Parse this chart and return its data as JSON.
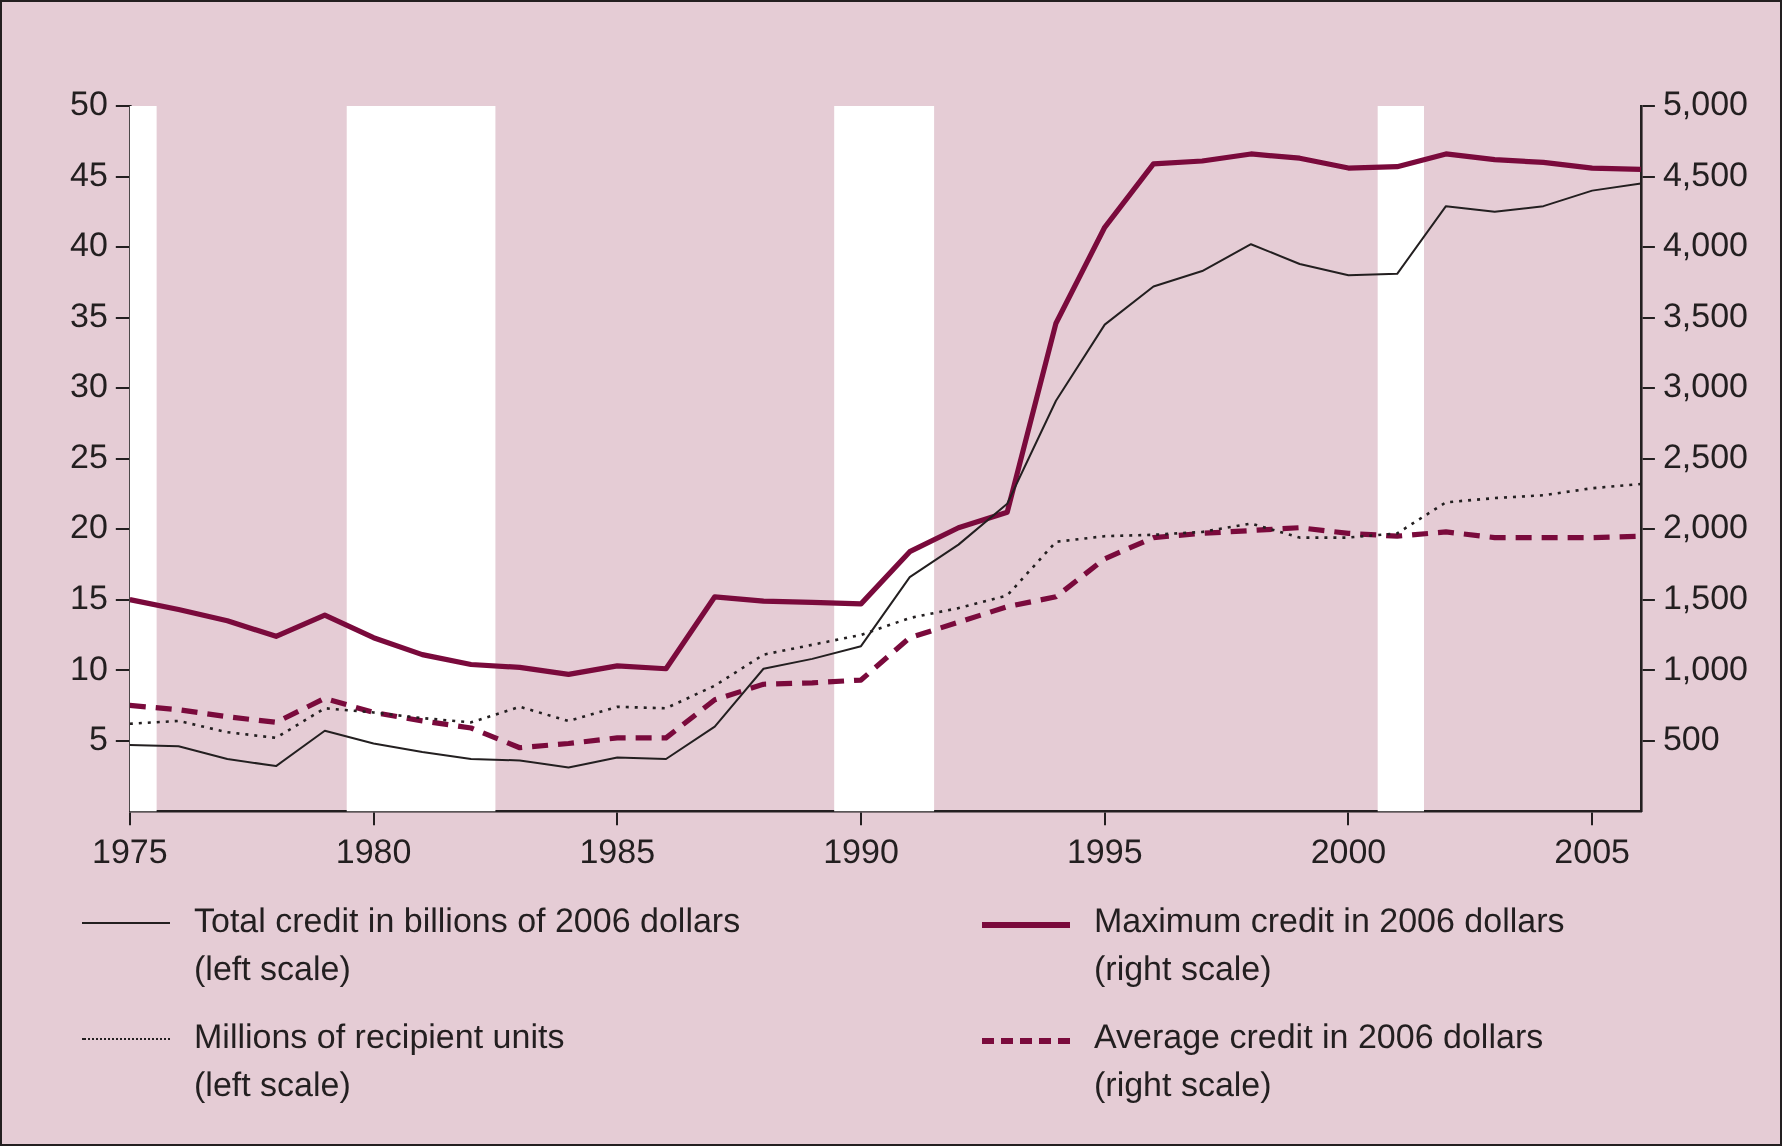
{
  "chart_data": {
    "type": "line",
    "x": [
      1975,
      1976,
      1977,
      1978,
      1979,
      1980,
      1981,
      1982,
      1983,
      1984,
      1985,
      1986,
      1987,
      1988,
      1989,
      1990,
      1991,
      1992,
      1993,
      1994,
      1995,
      1996,
      1997,
      1998,
      1999,
      2000,
      2001,
      2002,
      2003,
      2004,
      2005,
      2006
    ],
    "series": [
      {
        "name": "Total credit in billions of 2006 dollars\n(left scale)",
        "color": "#231f20",
        "line_style": "solid",
        "axis": "y",
        "values": [
          4.7,
          4.6,
          3.7,
          3.2,
          5.7,
          4.8,
          4.2,
          3.7,
          3.6,
          3.1,
          3.8,
          3.7,
          6.0,
          10.1,
          10.8,
          11.7,
          16.6,
          18.9,
          21.8,
          29.1,
          34.5,
          37.2,
          38.3,
          40.2,
          38.8,
          38.0,
          38.1,
          42.9,
          42.5,
          42.9,
          44.0,
          44.5
        ]
      },
      {
        "name": "Maximum credit in 2006 dollars\n(right scale)",
        "color": "#7a0a3c",
        "line_style": "solid",
        "axis": "y2",
        "values": [
          1500,
          1430,
          1350,
          1240,
          1390,
          1230,
          1110,
          1040,
          1020,
          970,
          1030,
          1010,
          1520,
          1490,
          1480,
          1470,
          1840,
          2010,
          2120,
          3460,
          4140,
          4590,
          4610,
          4660,
          4630,
          4560,
          4570,
          4660,
          4620,
          4600,
          4560,
          4550
        ]
      },
      {
        "name": "Millions of recipient units\n(left scale)",
        "color": "#231f20",
        "line_style": "dotted",
        "axis": "y",
        "values": [
          6.2,
          6.4,
          5.6,
          5.2,
          7.3,
          7.0,
          6.6,
          6.3,
          7.4,
          6.4,
          7.4,
          7.3,
          8.9,
          11.1,
          11.8,
          12.5,
          13.7,
          14.4,
          15.3,
          19.1,
          19.5,
          19.6,
          19.8,
          20.4,
          19.4,
          19.4,
          19.7,
          21.9,
          22.2,
          22.4,
          22.9,
          23.2
        ]
      },
      {
        "name": "Average credit in 2006 dollars\n(right scale)",
        "color": "#7a0a3c",
        "line_style": "dashed",
        "axis": "y2",
        "values": [
          750,
          720,
          670,
          630,
          800,
          700,
          640,
          590,
          450,
          480,
          520,
          520,
          790,
          900,
          910,
          930,
          1230,
          1340,
          1450,
          1520,
          1790,
          1940,
          1970,
          1990,
          2010,
          1970,
          1950,
          1980,
          1940,
          1940,
          1940,
          1950
        ]
      }
    ],
    "xlim": [
      1975,
      2006
    ],
    "xticks": [
      1975,
      1980,
      1985,
      1990,
      1995,
      2000,
      2005
    ],
    "ylim": [
      0,
      50
    ],
    "yticks": [
      5,
      10,
      15,
      20,
      25,
      30,
      35,
      40,
      45,
      50
    ],
    "y2lim": [
      0,
      5000
    ],
    "y2ticks": [
      {
        "value": 500,
        "label": "500"
      },
      {
        "value": 1000,
        "label": "1,000"
      },
      {
        "value": 1500,
        "label": "1,500"
      },
      {
        "value": 2000,
        "label": "2,000"
      },
      {
        "value": 2500,
        "label": "2,500"
      },
      {
        "value": 3000,
        "label": "3,000"
      },
      {
        "value": 3500,
        "label": "3,500"
      },
      {
        "value": 4000,
        "label": "4,000"
      },
      {
        "value": 4500,
        "label": "4,500"
      },
      {
        "value": 5000,
        "label": "5,000"
      }
    ],
    "bands": [
      {
        "axis": "x",
        "from": 1975,
        "to": 1975.55,
        "color": "#ffffff"
      },
      {
        "axis": "x",
        "from": 1979.45,
        "to": 1982.5,
        "color": "#ffffff"
      },
      {
        "axis": "x",
        "from": 1989.45,
        "to": 1991.5,
        "color": "#ffffff"
      },
      {
        "axis": "x",
        "from": 2000.6,
        "to": 2001.55,
        "color": "#ffffff"
      }
    ],
    "grid": false,
    "legend": "bottom",
    "marker": "none"
  }
}
